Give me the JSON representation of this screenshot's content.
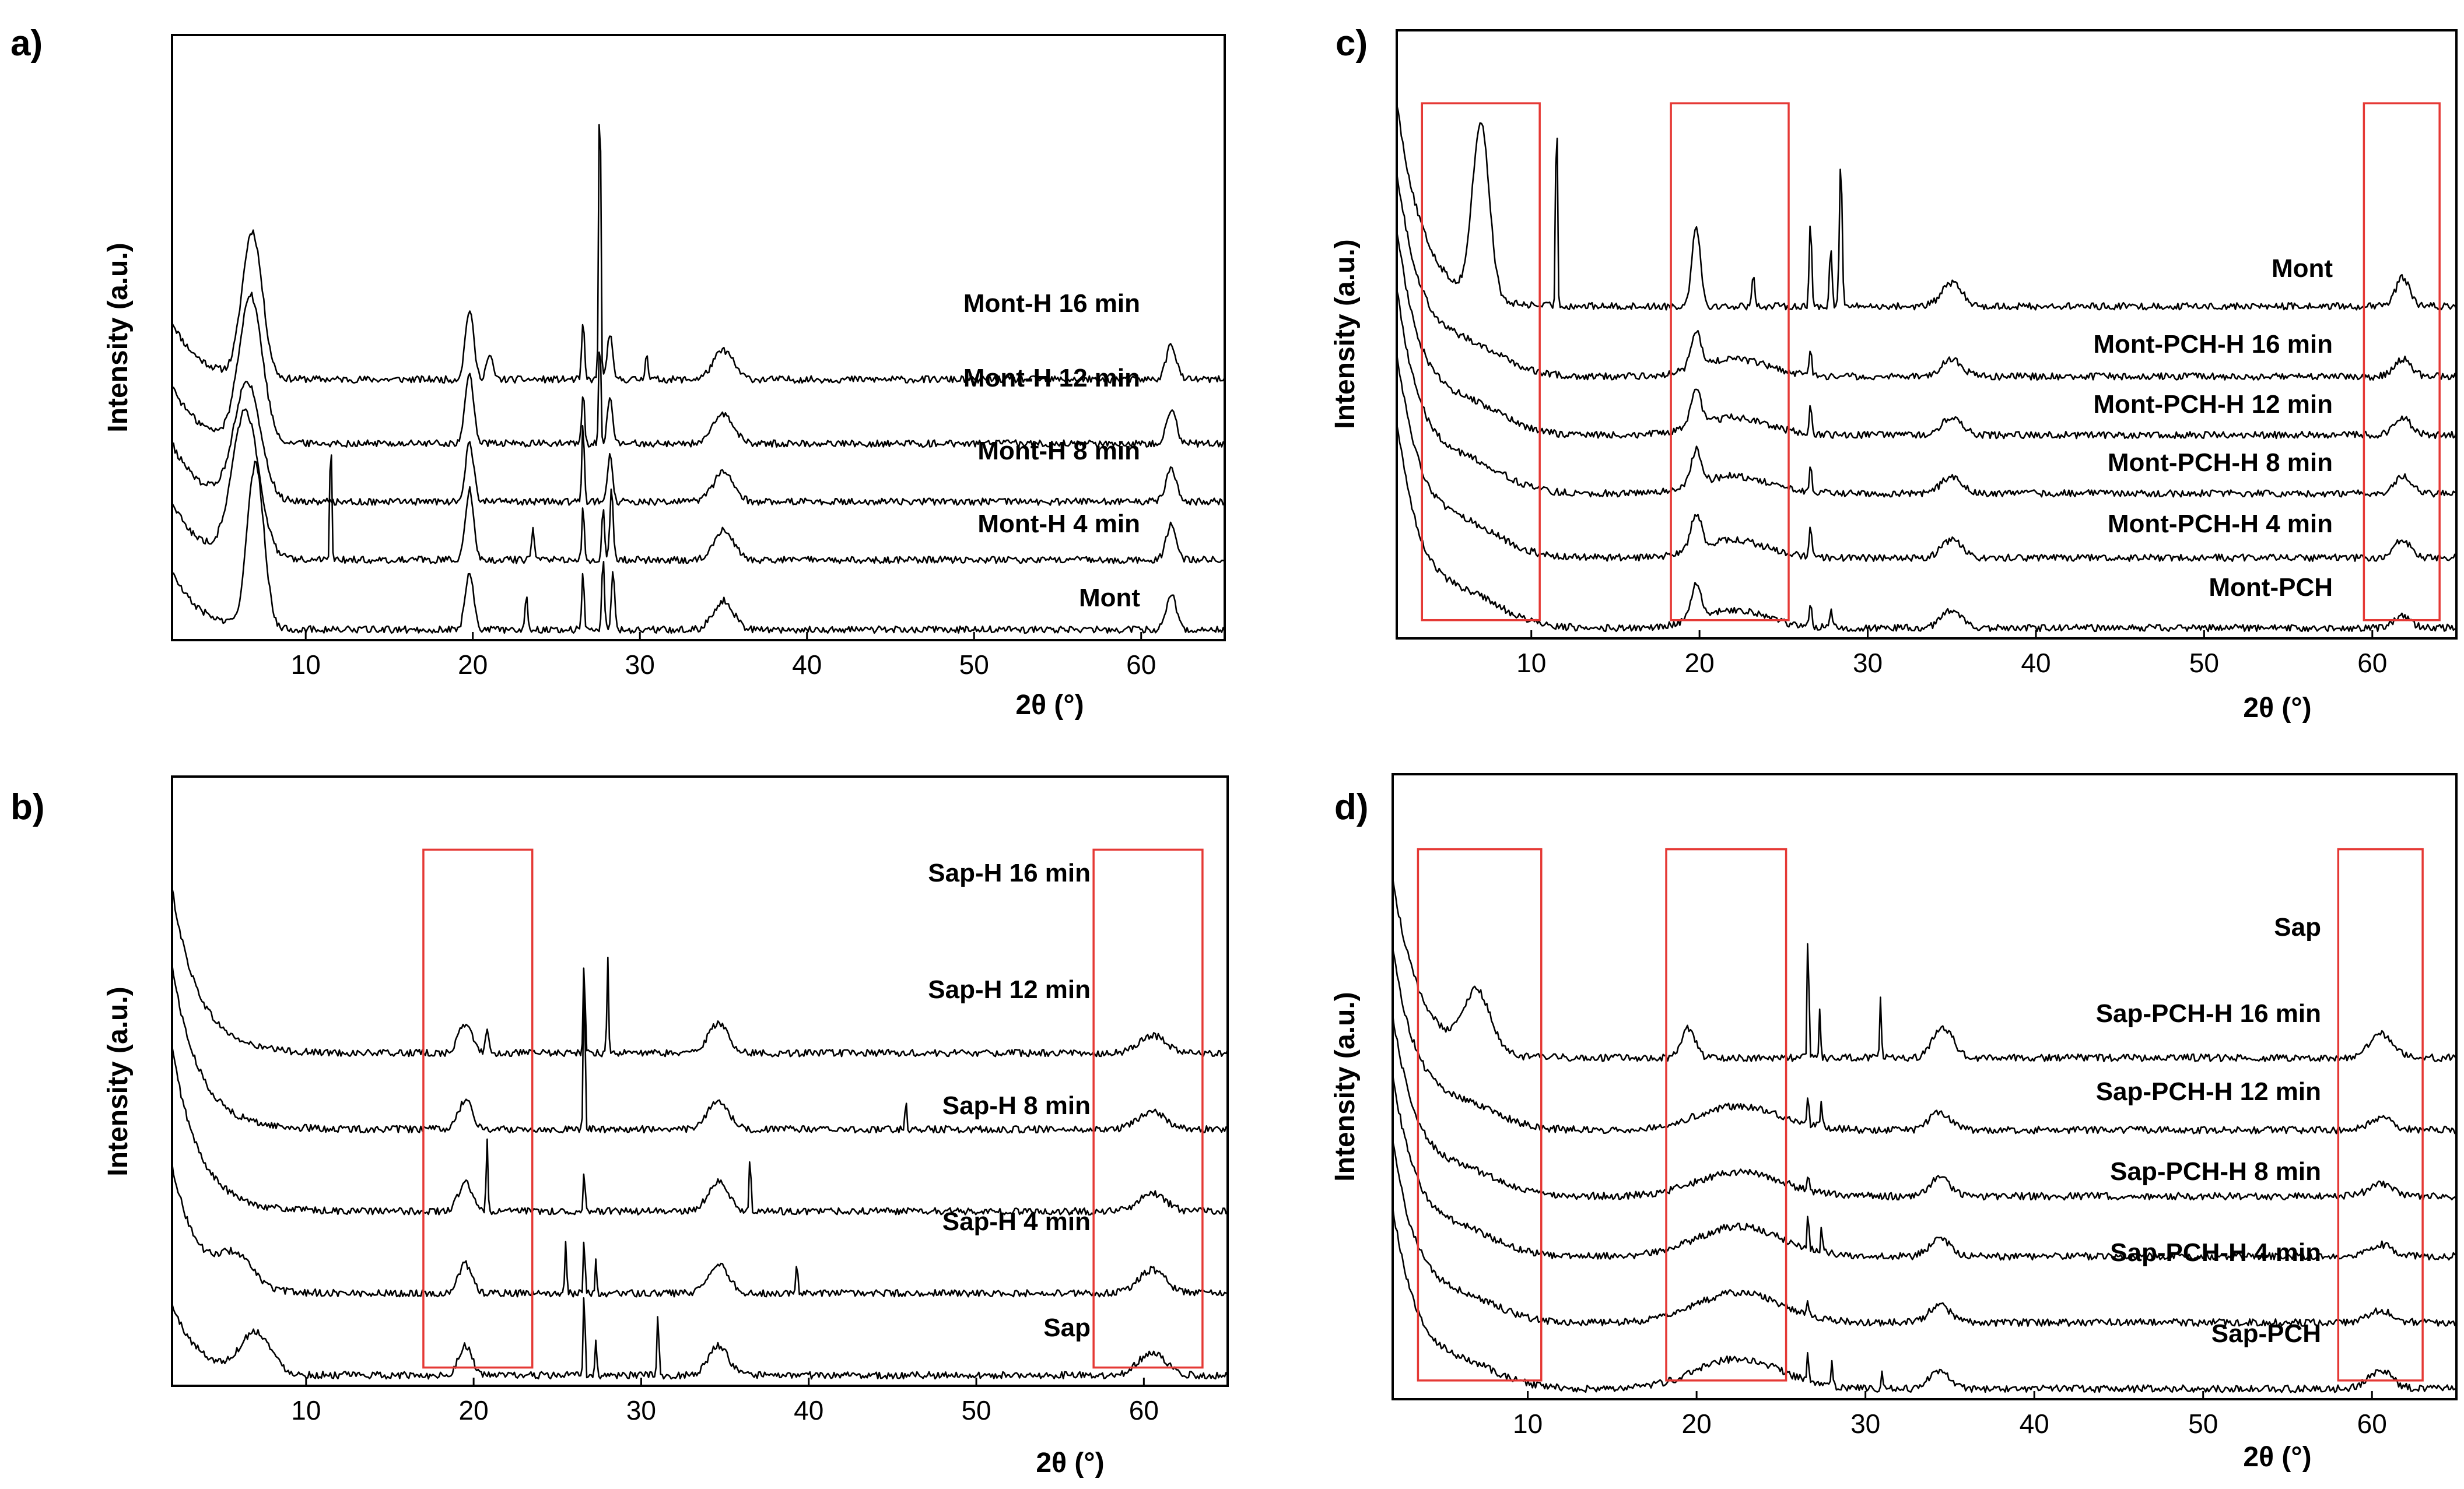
{
  "colors": {
    "line": "#000000",
    "highlight": "#e53935",
    "background": "#ffffff"
  },
  "chart_data": [
    {
      "type": "line",
      "panel": "a)",
      "xlabel": "2θ (°)",
      "ylabel": "Intensity (a.u.)",
      "xlim": [
        2,
        65
      ],
      "xticks": [
        10,
        20,
        30,
        40,
        50,
        60
      ],
      "highlight_ranges": [],
      "series": [
        {
          "name": "Mont-H 16 min",
          "base": 0.43,
          "decay": 0.1,
          "smalls": [
            [
              6.8,
              0.25,
              0.6
            ],
            [
              19.8,
              0.12,
              0.25
            ],
            [
              21,
              0.04,
              0.2
            ],
            [
              26.6,
              0.1,
              0.08
            ],
            [
              27.6,
              0.55,
              0.06
            ],
            [
              28.2,
              0.08,
              0.15
            ],
            [
              30.4,
              0.05,
              0.08
            ],
            [
              35,
              0.05,
              0.6
            ],
            [
              61.8,
              0.06,
              0.3
            ]
          ]
        },
        {
          "name": "Mont-H 12 min",
          "base": 0.32,
          "decay": 0.1,
          "smalls": [
            [
              6.7,
              0.25,
              0.7
            ],
            [
              19.8,
              0.12,
              0.25
            ],
            [
              26.6,
              0.09,
              0.08
            ],
            [
              27.6,
              0.2,
              0.06
            ],
            [
              28.2,
              0.08,
              0.15
            ],
            [
              35,
              0.05,
              0.6
            ],
            [
              61.8,
              0.06,
              0.3
            ]
          ]
        },
        {
          "name": "Mont-H 8 min",
          "base": 0.22,
          "decay": 0.1,
          "smalls": [
            [
              6.5,
              0.2,
              0.8
            ],
            [
              19.8,
              0.1,
              0.25
            ],
            [
              26.6,
              0.14,
              0.07
            ],
            [
              28.2,
              0.08,
              0.15
            ],
            [
              35,
              0.05,
              0.6
            ],
            [
              61.8,
              0.06,
              0.3
            ]
          ]
        },
        {
          "name": "Mont-H 4 min",
          "base": 0.12,
          "decay": 0.1,
          "smalls": [
            [
              6.4,
              0.25,
              0.8
            ],
            [
              11.5,
              0.25,
              0.05
            ],
            [
              19.8,
              0.12,
              0.25
            ],
            [
              23.6,
              0.05,
              0.08
            ],
            [
              26.6,
              0.1,
              0.07
            ],
            [
              27.8,
              0.09,
              0.08
            ],
            [
              28.3,
              0.12,
              0.1
            ],
            [
              35,
              0.05,
              0.6
            ],
            [
              61.8,
              0.06,
              0.3
            ]
          ]
        },
        {
          "name": "Mont",
          "base": 0.0,
          "decay": 0.1,
          "smalls": [
            [
              7.0,
              0.28,
              0.5
            ],
            [
              19.8,
              0.1,
              0.25
            ],
            [
              23.2,
              0.06,
              0.08
            ],
            [
              26.6,
              0.1,
              0.07
            ],
            [
              27.8,
              0.12,
              0.08
            ],
            [
              28.4,
              0.1,
              0.1
            ],
            [
              35,
              0.05,
              0.6
            ],
            [
              61.8,
              0.06,
              0.3
            ]
          ]
        }
      ]
    },
    {
      "type": "line",
      "panel": "b)",
      "xlabel": "2θ (°)",
      "ylabel": "Intensity (a.u.)",
      "xlim": [
        2,
        65
      ],
      "xticks": [
        10,
        20,
        30,
        40,
        50,
        60
      ],
      "highlight_ranges": [
        [
          17,
          23.5
        ],
        [
          57,
          63.5
        ]
      ],
      "series": [
        {
          "name": "Sap-H 16 min",
          "base": 0.55,
          "decay": 0.28,
          "smalls": [
            [
              19.5,
              0.05,
              0.4
            ],
            [
              20.8,
              0.04,
              0.1
            ],
            [
              26.6,
              0.18,
              0.05
            ],
            [
              28.0,
              0.17,
              0.05
            ],
            [
              34.6,
              0.05,
              0.6
            ],
            [
              60.5,
              0.03,
              0.8
            ]
          ]
        },
        {
          "name": "Sap-H 12 min",
          "base": 0.42,
          "decay": 0.28,
          "smalls": [
            [
              19.5,
              0.05,
              0.4
            ],
            [
              26.6,
              0.3,
              0.05
            ],
            [
              45.8,
              0.05,
              0.05
            ],
            [
              34.6,
              0.05,
              0.6
            ],
            [
              60.5,
              0.03,
              0.8
            ]
          ]
        },
        {
          "name": "Sap-H 8 min",
          "base": 0.28,
          "decay": 0.28,
          "smalls": [
            [
              19.5,
              0.05,
              0.4
            ],
            [
              20.8,
              0.12,
              0.05
            ],
            [
              26.6,
              0.08,
              0.05
            ],
            [
              36.5,
              0.1,
              0.05
            ],
            [
              34.6,
              0.05,
              0.6
            ],
            [
              60.5,
              0.03,
              0.8
            ]
          ]
        },
        {
          "name": "Sap-H 4 min",
          "base": 0.14,
          "decay": 0.22,
          "smalls": [
            [
              5.8,
              0.05,
              1.0
            ],
            [
              19.5,
              0.05,
              0.4
            ],
            [
              25.5,
              0.09,
              0.05
            ],
            [
              26.6,
              0.1,
              0.05
            ],
            [
              27.3,
              0.06,
              0.05
            ],
            [
              39.3,
              0.06,
              0.05
            ],
            [
              34.6,
              0.05,
              0.6
            ],
            [
              60.5,
              0.04,
              0.8
            ]
          ]
        },
        {
          "name": "Sap",
          "base": 0.0,
          "decay": 0.12,
          "smalls": [
            [
              7.0,
              0.07,
              0.9
            ],
            [
              19.5,
              0.05,
              0.4
            ],
            [
              26.6,
              0.16,
              0.05
            ],
            [
              27.3,
              0.06,
              0.05
            ],
            [
              31.0,
              0.1,
              0.06
            ],
            [
              34.6,
              0.05,
              0.6
            ],
            [
              60.5,
              0.04,
              0.8
            ]
          ]
        }
      ]
    },
    {
      "type": "line",
      "panel": "c)",
      "xlabel": "2θ (°)",
      "ylabel": "Intensity (a.u.)",
      "xlim": [
        2,
        65
      ],
      "xticks": [
        10,
        20,
        30,
        40,
        50,
        60
      ],
      "highlight_ranges": [
        [
          3.5,
          10.5
        ],
        [
          18.3,
          25.3
        ],
        [
          59.5,
          64
        ]
      ],
      "series": [
        {
          "name": "Mont",
          "base": 0.55,
          "decay": 0.35,
          "smalls": [
            [
              7.0,
              0.3,
              0.5
            ],
            [
              11.5,
              0.4,
              0.05
            ],
            [
              19.8,
              0.14,
              0.25
            ],
            [
              23.2,
              0.06,
              0.08
            ],
            [
              26.6,
              0.15,
              0.07
            ],
            [
              27.8,
              0.1,
              0.08
            ],
            [
              28.4,
              0.25,
              0.08
            ],
            [
              35,
              0.04,
              0.6
            ],
            [
              61.8,
              0.05,
              0.4
            ]
          ]
        },
        {
          "name": "Mont-PCH-H 16 min",
          "base": 0.43,
          "decay": 0.35,
          "smalls": [
            [
              6.5,
              0.04,
              2.0
            ],
            [
              19.8,
              0.06,
              0.3
            ],
            [
              22,
              0.03,
              2.0
            ],
            [
              26.6,
              0.05,
              0.07
            ],
            [
              35,
              0.03,
              0.6
            ],
            [
              61.8,
              0.03,
              0.5
            ]
          ]
        },
        {
          "name": "Mont-PCH-H 12 min",
          "base": 0.33,
          "decay": 0.35,
          "smalls": [
            [
              6.5,
              0.04,
              2.0
            ],
            [
              19.8,
              0.06,
              0.3
            ],
            [
              22,
              0.03,
              2.0
            ],
            [
              26.6,
              0.05,
              0.07
            ],
            [
              35,
              0.03,
              0.6
            ],
            [
              61.8,
              0.03,
              0.5
            ]
          ]
        },
        {
          "name": "Mont-PCH-H 8 min",
          "base": 0.23,
          "decay": 0.35,
          "smalls": [
            [
              6.5,
              0.04,
              2.0
            ],
            [
              19.8,
              0.06,
              0.3
            ],
            [
              22,
              0.03,
              2.0
            ],
            [
              26.6,
              0.05,
              0.07
            ],
            [
              35,
              0.03,
              0.6
            ],
            [
              61.8,
              0.03,
              0.5
            ]
          ]
        },
        {
          "name": "Mont-PCH-H 4 min",
          "base": 0.12,
          "decay": 0.35,
          "smalls": [
            [
              6.5,
              0.04,
              2.0
            ],
            [
              19.8,
              0.06,
              0.3
            ],
            [
              22,
              0.03,
              2.0
            ],
            [
              26.6,
              0.05,
              0.07
            ],
            [
              35,
              0.03,
              0.6
            ],
            [
              61.8,
              0.03,
              0.5
            ]
          ]
        },
        {
          "name": "Mont-PCH",
          "base": 0.0,
          "decay": 0.35,
          "smalls": [
            [
              6.5,
              0.04,
              2.0
            ],
            [
              19.8,
              0.06,
              0.3
            ],
            [
              22,
              0.03,
              2.0
            ],
            [
              26.6,
              0.04,
              0.07
            ],
            [
              27.8,
              0.03,
              0.07
            ],
            [
              35,
              0.03,
              0.6
            ],
            [
              61.8,
              0.02,
              0.5
            ]
          ]
        }
      ]
    },
    {
      "type": "line",
      "panel": "d)",
      "xlabel": "2θ (°)",
      "ylabel": "Intensity (a.u.)",
      "xlim": [
        2,
        65
      ],
      "xticks": [
        10,
        20,
        30,
        40,
        50,
        60
      ],
      "highlight_ranges": [
        [
          3.5,
          10.8
        ],
        [
          18.2,
          25.3
        ],
        [
          58,
          63
        ]
      ],
      "series": [
        {
          "name": "Sap",
          "base": 0.55,
          "decay": 0.3,
          "smalls": [
            [
              7.0,
              0.1,
              0.8
            ],
            [
              19.5,
              0.05,
              0.4
            ],
            [
              26.6,
              0.22,
              0.05
            ],
            [
              27.3,
              0.08,
              0.05
            ],
            [
              30.9,
              0.1,
              0.05
            ],
            [
              34.6,
              0.05,
              0.6
            ],
            [
              60.5,
              0.04,
              0.7
            ]
          ]
        },
        {
          "name": "Sap-PCH-H 16 min",
          "base": 0.43,
          "decay": 0.3,
          "smalls": [
            [
              6.5,
              0.03,
              2.0
            ],
            [
              22.5,
              0.04,
              2.5
            ],
            [
              26.6,
              0.05,
              0.05
            ],
            [
              27.4,
              0.04,
              0.05
            ],
            [
              34.4,
              0.03,
              0.6
            ],
            [
              60.5,
              0.02,
              0.7
            ]
          ]
        },
        {
          "name": "Sap-PCH-H 12 min",
          "base": 0.32,
          "decay": 0.3,
          "smalls": [
            [
              6.5,
              0.03,
              2.0
            ],
            [
              22.5,
              0.04,
              2.5
            ],
            [
              26.6,
              0.03,
              0.05
            ],
            [
              34.4,
              0.03,
              0.6
            ],
            [
              60.5,
              0.02,
              0.7
            ]
          ]
        },
        {
          "name": "Sap-PCH-H 8 min",
          "base": 0.22,
          "decay": 0.3,
          "smalls": [
            [
              6.5,
              0.03,
              2.0
            ],
            [
              22.5,
              0.05,
              2.5
            ],
            [
              26.6,
              0.06,
              0.05
            ],
            [
              27.4,
              0.04,
              0.05
            ],
            [
              34.4,
              0.03,
              0.6
            ],
            [
              60.5,
              0.02,
              0.7
            ]
          ]
        },
        {
          "name": "Sap-PCH-H 4 min",
          "base": 0.11,
          "decay": 0.3,
          "smalls": [
            [
              6.5,
              0.03,
              2.0
            ],
            [
              22.5,
              0.05,
              2.5
            ],
            [
              26.6,
              0.03,
              0.05
            ],
            [
              34.4,
              0.03,
              0.6
            ],
            [
              60.5,
              0.02,
              0.7
            ]
          ]
        },
        {
          "name": "Sap-PCH",
          "base": 0.0,
          "decay": 0.3,
          "smalls": [
            [
              6.5,
              0.03,
              2.0
            ],
            [
              22.5,
              0.05,
              2.5
            ],
            [
              26.6,
              0.05,
              0.05
            ],
            [
              28.0,
              0.04,
              0.05
            ],
            [
              31.0,
              0.03,
              0.05
            ],
            [
              34.4,
              0.03,
              0.6
            ],
            [
              60.5,
              0.03,
              0.7
            ]
          ]
        }
      ]
    }
  ]
}
